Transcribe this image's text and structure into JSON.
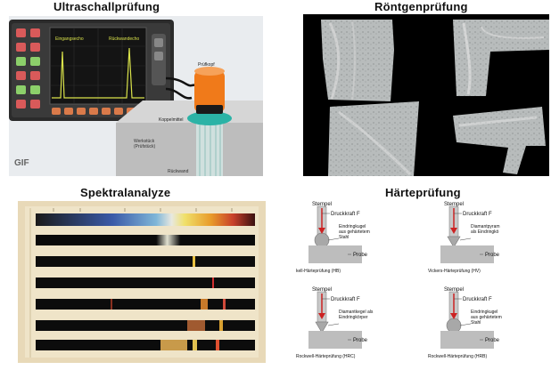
{
  "sections": {
    "ultrasonic": {
      "title": "Ultraschallprüfung",
      "screen_label_left": "Eingangsecho",
      "screen_label_right": "Rückwandecho",
      "probe_label": "Prüfkopf",
      "coupling_label": "Koppelmittel",
      "workpiece_label": "Werkstück\n(Prüfstück)",
      "backwall_label": "Rückwand",
      "gif_label": "GIF"
    },
    "xray": {
      "title": "Röntgenprüfung"
    },
    "spectral": {
      "title": "Spektralanalyze"
    },
    "hardness": {
      "title": "Härteprüfung",
      "cells": [
        {
          "stempel": "Stempel",
          "force": "Druckkraft F",
          "indenter": "Eindringkugel\naus gehärtetem\nStahl",
          "probe": "Probe",
          "caption": "kell-Härteprüfung (HB)"
        },
        {
          "stempel": "Stempel",
          "force": "Druckkraft F",
          "indenter": "Diamantpyram\nals Eindringkö",
          "probe": "Probe",
          "caption": "Vickers-Härteprüfung (HV)"
        },
        {
          "stempel": "Stempel",
          "force": "Druckkraft F",
          "indenter": "Diamantkegel als\nEindringkörper",
          "probe": "Probe",
          "caption": "Rockwell-Härteprüfung (HRC)"
        },
        {
          "stempel": "Stempel",
          "force": "Druckkraft F",
          "indenter": "Eindringkugel\naus gehärtetem\nStahl",
          "probe": "Probe",
          "caption": "Rockwell-Härteprüfung (HRB)"
        }
      ]
    }
  },
  "colors": {
    "device_frame": "#2b2b2b",
    "screen_bg": "#1a1a1a",
    "trace": "#d9e24a",
    "probe_orange": "#f07a1a",
    "gel": "#2bb3a6",
    "workpiece": "#bdbdbd",
    "arrow": "#cc2222"
  }
}
